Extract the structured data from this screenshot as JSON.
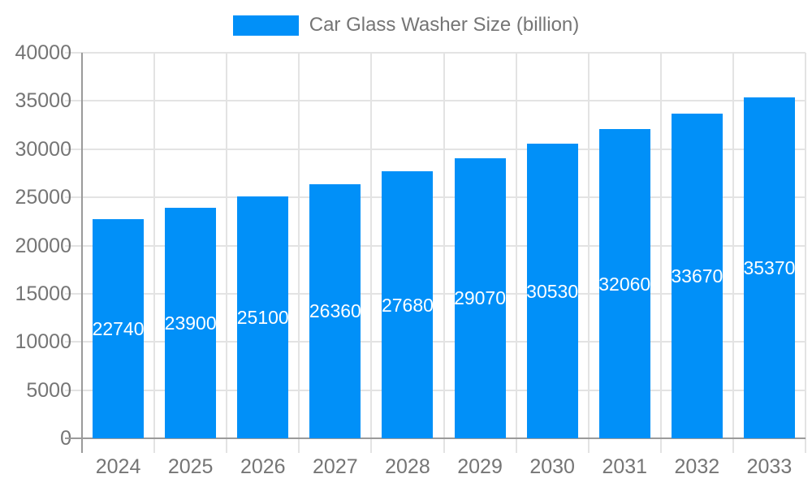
{
  "chart_data": {
    "type": "bar",
    "title": "Car Glass Washer Size (billion)",
    "categories": [
      "2024",
      "2025",
      "2026",
      "2027",
      "2028",
      "2029",
      "2030",
      "2031",
      "2032",
      "2033"
    ],
    "values": [
      22740,
      23900,
      25100,
      26360,
      27680,
      29070,
      30530,
      32060,
      33670,
      35370
    ],
    "series": [
      {
        "name": "Car Glass Washer Size (billion)",
        "values": [
          22740,
          23900,
          25100,
          26360,
          27680,
          29070,
          30530,
          32060,
          33670,
          35370
        ]
      }
    ],
    "xlabel": "",
    "ylabel": "",
    "ylim": [
      0,
      40000
    ],
    "ytick_step": 5000,
    "ytick_labels": [
      "0",
      "5000",
      "10000",
      "15000",
      "20000",
      "25000",
      "30000",
      "35000",
      "40000"
    ],
    "grid": true,
    "value_labels": "inside-center-white",
    "legend_position": "top-center",
    "colors": {
      "bar": "#0190f8",
      "axis": "#9a9a9a",
      "grid": "#e3e3e3",
      "text": "#757575",
      "bar_label": "#ffffff",
      "background": "#ffffff"
    }
  }
}
